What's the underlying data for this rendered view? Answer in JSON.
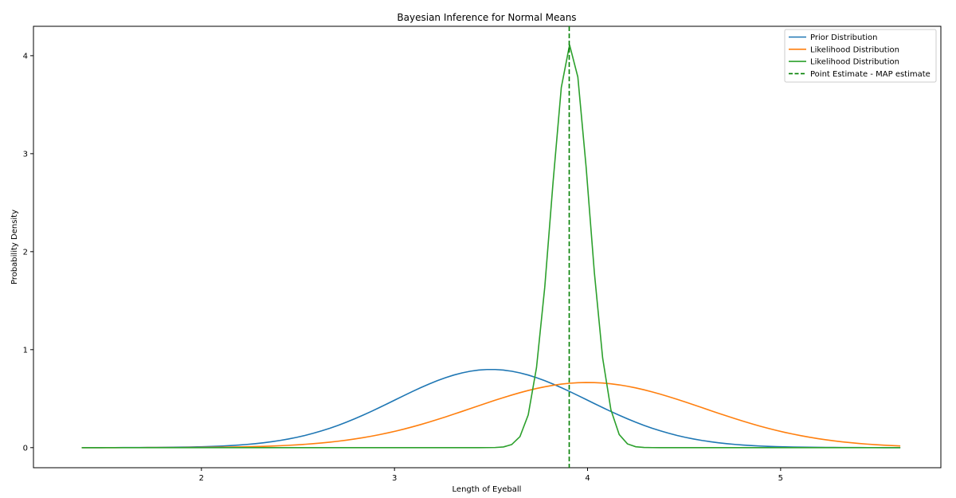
{
  "chart_data": {
    "type": "line",
    "title": "Bayesian Inference for Normal Means",
    "xlabel": "Length of Eyeball",
    "ylabel": "Probability Density",
    "xlim": [
      1.13,
      5.83
    ],
    "ylim": [
      -0.205,
      4.3
    ],
    "xticks": [
      2,
      3,
      4,
      5
    ],
    "yticks": [
      0,
      1,
      2,
      3,
      4
    ],
    "x_range": [
      1.38,
      5.62
    ],
    "legend_position": "top-right",
    "series": [
      {
        "name": "Prior Distribution",
        "kind": "normal",
        "mean": 3.5,
        "std": 0.5,
        "color": "#1f77b4",
        "style": "solid"
      },
      {
        "name": "Likelihood Distribution",
        "kind": "normal",
        "mean": 4.0,
        "std": 0.6,
        "color": "#ff7f0e",
        "style": "solid"
      },
      {
        "name": "Likelihood Distribution",
        "kind": "normal",
        "mean": 3.91,
        "std": 0.097,
        "color": "#2ca02c",
        "style": "solid"
      },
      {
        "name": "Point Estimate - MAP estimate",
        "kind": "vline",
        "x": 3.905,
        "color": "#008000",
        "style": "dashed"
      }
    ]
  }
}
